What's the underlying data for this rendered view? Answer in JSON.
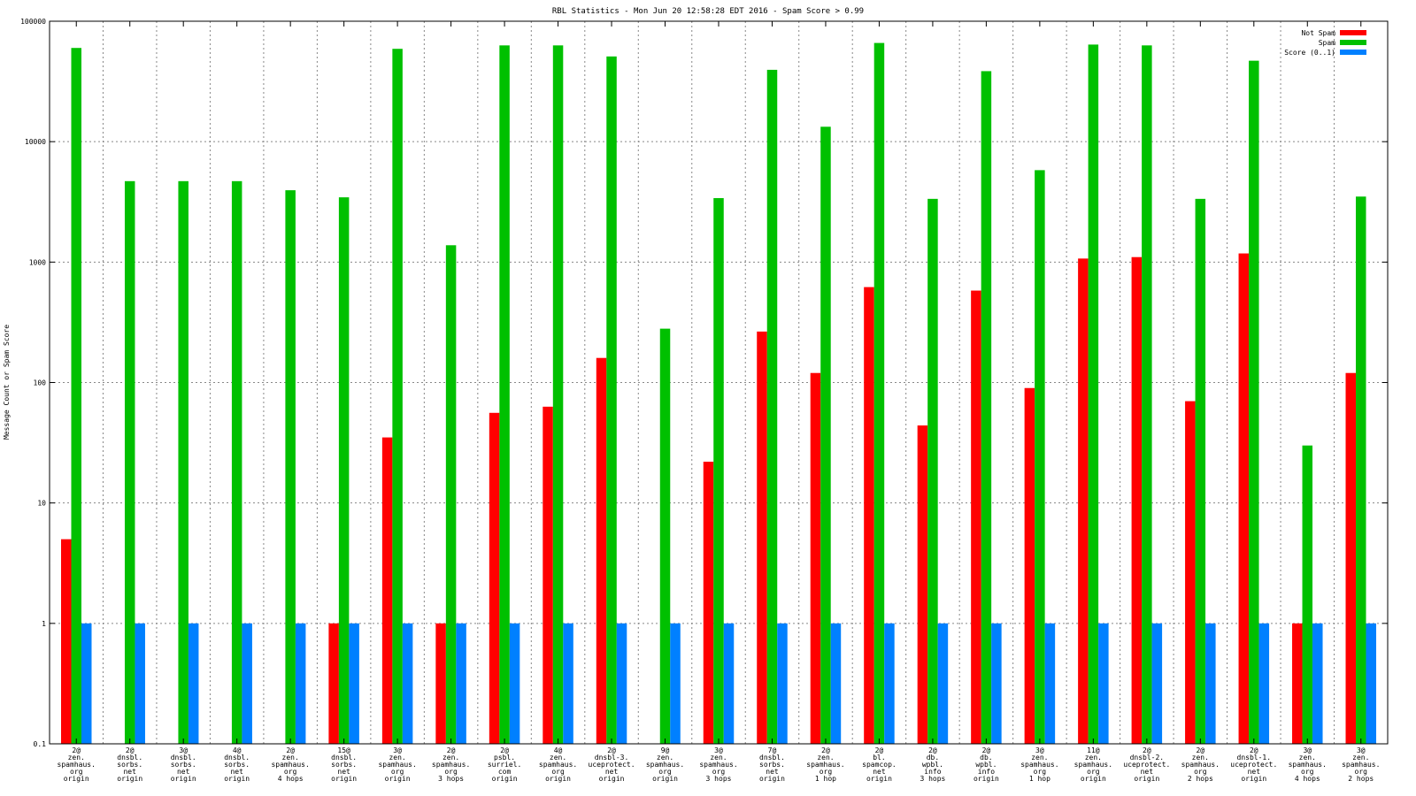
{
  "chart_data": {
    "type": "bar",
    "title": "RBL Statistics - Mon Jun 20 12:58:28 EDT 2016 - Spam Score > 0.99",
    "ylabel": "Message Count or Spam Score",
    "xlabel": "",
    "yscale": "log",
    "ylim": [
      0.1,
      100000
    ],
    "yticks": [
      "0.1",
      "1",
      "10",
      "100",
      "1000",
      "10000",
      "100000"
    ],
    "grid": true,
    "legend_position": "top-right",
    "categories": [
      [
        "2@",
        "zen.",
        "spamhaus.",
        "org",
        "origin"
      ],
      [
        "2@",
        "dnsbl.",
        "sorbs.",
        "net",
        "origin"
      ],
      [
        "3@",
        "dnsbl.",
        "sorbs.",
        "net",
        "origin"
      ],
      [
        "4@",
        "dnsbl.",
        "sorbs.",
        "net",
        "origin"
      ],
      [
        "2@",
        "zen.",
        "spamhaus.",
        "org",
        "4 hops"
      ],
      [
        "15@",
        "dnsbl.",
        "sorbs.",
        "net",
        "origin"
      ],
      [
        "3@",
        "zen.",
        "spamhaus.",
        "org",
        "origin"
      ],
      [
        "2@",
        "zen.",
        "spamhaus.",
        "org",
        "3 hops"
      ],
      [
        "2@",
        "psbl.",
        "surriel.",
        "com",
        "origin"
      ],
      [
        "4@",
        "zen.",
        "spamhaus.",
        "org",
        "origin"
      ],
      [
        "2@",
        "dnsbl-3.",
        "uceprotect.",
        "net",
        "origin"
      ],
      [
        "9@",
        "zen.",
        "spamhaus.",
        "org",
        "origin"
      ],
      [
        "3@",
        "zen.",
        "spamhaus.",
        "org",
        "3 hops"
      ],
      [
        "7@",
        "dnsbl.",
        "sorbs.",
        "net",
        "origin"
      ],
      [
        "2@",
        "zen.",
        "spamhaus.",
        "org",
        "1 hop"
      ],
      [
        "2@",
        "bl.",
        "spamcop.",
        "net",
        "origin"
      ],
      [
        "2@",
        "db.",
        "wpbl.",
        "info",
        "3 hops"
      ],
      [
        "2@",
        "db.",
        "wpbl.",
        "info",
        "origin"
      ],
      [
        "3@",
        "zen.",
        "spamhaus.",
        "org",
        "1 hop"
      ],
      [
        "11@",
        "zen.",
        "spamhaus.",
        "org",
        "origin"
      ],
      [
        "2@",
        "dnsbl-2.",
        "uceprotect.",
        "net",
        "origin"
      ],
      [
        "2@",
        "zen.",
        "spamhaus.",
        "org",
        "2 hops"
      ],
      [
        "2@",
        "dnsbl-1.",
        "uceprotect.",
        "net",
        "origin"
      ],
      [
        "3@",
        "zen.",
        "spamhaus.",
        "org",
        "4 hops"
      ],
      [
        "3@",
        "zen.",
        "spamhaus.",
        "org",
        "2 hops"
      ]
    ],
    "series": [
      {
        "name": "Not Spam",
        "color": "#ff0000",
        "values": [
          5,
          null,
          null,
          null,
          null,
          1,
          35,
          1,
          56,
          63,
          160,
          null,
          22,
          265,
          120,
          620,
          44,
          580,
          90,
          1070,
          1100,
          70,
          1180,
          1,
          120
        ]
      },
      {
        "name": "Spam",
        "color": "#00c000",
        "values": [
          60000,
          4700,
          4700,
          4700,
          3950,
          3450,
          59000,
          1380,
          63000,
          63000,
          51000,
          280,
          3400,
          39500,
          13300,
          66000,
          3350,
          38500,
          5800,
          64000,
          63000,
          3350,
          47000,
          30,
          3500
        ]
      },
      {
        "name": "Score (0..1)",
        "color": "#0080ff",
        "values": [
          1,
          1,
          1,
          1,
          1,
          1,
          1,
          1,
          1,
          1,
          1,
          1,
          1,
          1,
          1,
          1,
          1,
          1,
          1,
          1,
          1,
          1,
          1,
          1,
          1
        ]
      }
    ]
  }
}
